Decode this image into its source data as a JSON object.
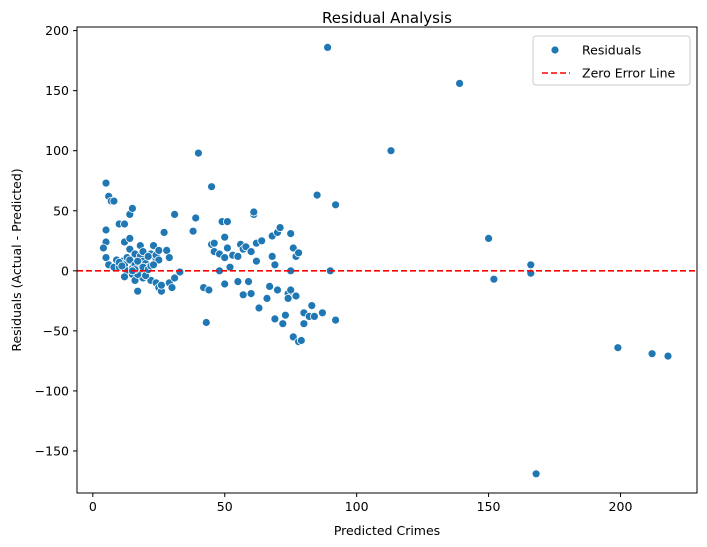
{
  "colors": {
    "point": "#1f77b4",
    "zero_line": "#ff0000"
  },
  "chart_data": {
    "type": "scatter",
    "title": "Residual Analysis",
    "xlabel": "Predicted Crimes",
    "ylabel": "Residuals (Actual - Predicted)",
    "xlim": [
      -6,
      229
    ],
    "ylim": [
      -185,
      203
    ],
    "x_ticks": [
      0,
      50,
      100,
      150,
      200
    ],
    "y_ticks": [
      -150,
      -100,
      -50,
      0,
      50,
      100,
      150,
      200
    ],
    "x_tick_labels": [
      "0",
      "50",
      "100",
      "150",
      "200"
    ],
    "y_tick_labels": [
      "−150",
      "−100",
      "−50",
      "0",
      "50",
      "100",
      "150",
      "200"
    ],
    "legend": {
      "position": "upper right",
      "entries": [
        "Residuals",
        "Zero Error Line"
      ]
    },
    "reference_line": {
      "name": "Zero Error Line",
      "y": 0,
      "style": "dashed"
    },
    "series": [
      {
        "name": "Residuals",
        "points": [
          [
            5,
            73
          ],
          [
            6,
            62
          ],
          [
            7,
            58
          ],
          [
            8,
            58
          ],
          [
            5,
            34
          ],
          [
            5,
            24
          ],
          [
            4,
            19
          ],
          [
            5,
            11
          ],
          [
            6,
            5
          ],
          [
            8,
            3
          ],
          [
            10,
            39
          ],
          [
            12,
            39
          ],
          [
            12,
            24
          ],
          [
            14,
            27
          ],
          [
            14,
            47
          ],
          [
            15,
            52
          ],
          [
            11,
            8
          ],
          [
            12,
            5
          ],
          [
            10,
            3
          ],
          [
            13,
            0
          ],
          [
            12,
            -5
          ],
          [
            15,
            -3
          ],
          [
            16,
            -8
          ],
          [
            17,
            -17
          ],
          [
            14,
            18
          ],
          [
            16,
            14
          ],
          [
            18,
            21
          ],
          [
            18,
            12
          ],
          [
            19,
            8
          ],
          [
            20,
            6
          ],
          [
            21,
            3
          ],
          [
            20,
            -2
          ],
          [
            19,
            -6
          ],
          [
            22,
            -8
          ],
          [
            22,
            14
          ],
          [
            23,
            21
          ],
          [
            24,
            10
          ],
          [
            24,
            13
          ],
          [
            25,
            17
          ],
          [
            25,
            9
          ],
          [
            24,
            -10
          ],
          [
            25,
            -14
          ],
          [
            26,
            -17
          ],
          [
            26,
            -12
          ],
          [
            27,
            32
          ],
          [
            28,
            17
          ],
          [
            29,
            11
          ],
          [
            29,
            -10
          ],
          [
            30,
            -14
          ],
          [
            31,
            47
          ],
          [
            31,
            -6
          ],
          [
            33,
            -1
          ],
          [
            38,
            33
          ],
          [
            39,
            44
          ],
          [
            40,
            98
          ],
          [
            42,
            -14
          ],
          [
            43,
            -43
          ],
          [
            44,
            -16
          ],
          [
            45,
            22
          ],
          [
            45,
            70
          ],
          [
            46,
            23
          ],
          [
            46,
            16
          ],
          [
            48,
            14
          ],
          [
            48,
            0
          ],
          [
            49,
            41
          ],
          [
            50,
            28
          ],
          [
            50,
            11
          ],
          [
            50,
            -11
          ],
          [
            51,
            19
          ],
          [
            51,
            41
          ],
          [
            52,
            3
          ],
          [
            53,
            13
          ],
          [
            55,
            12
          ],
          [
            55,
            -9
          ],
          [
            56,
            22
          ],
          [
            57,
            18
          ],
          [
            57,
            -20
          ],
          [
            58,
            20
          ],
          [
            59,
            -9
          ],
          [
            60,
            16
          ],
          [
            60,
            -19
          ],
          [
            61,
            47
          ],
          [
            61,
            49
          ],
          [
            62,
            23
          ],
          [
            62,
            8
          ],
          [
            63,
            -31
          ],
          [
            64,
            25
          ],
          [
            66,
            -23
          ],
          [
            67,
            -13
          ],
          [
            68,
            29
          ],
          [
            68,
            12
          ],
          [
            69,
            -40
          ],
          [
            69,
            5
          ],
          [
            70,
            32
          ],
          [
            70,
            -16
          ],
          [
            71,
            36
          ],
          [
            72,
            -44
          ],
          [
            73,
            -37
          ],
          [
            74,
            -19
          ],
          [
            74,
            -23
          ],
          [
            75,
            31
          ],
          [
            75,
            -16
          ],
          [
            75,
            0
          ],
          [
            76,
            19
          ],
          [
            76,
            -55
          ],
          [
            77,
            12
          ],
          [
            77,
            -21
          ],
          [
            78,
            15
          ],
          [
            78,
            -59
          ],
          [
            79,
            -58
          ],
          [
            80,
            -35
          ],
          [
            80,
            -44
          ],
          [
            82,
            -38
          ],
          [
            83,
            -29
          ],
          [
            84,
            -38
          ],
          [
            85,
            63
          ],
          [
            87,
            -35
          ],
          [
            89,
            186
          ],
          [
            90,
            0
          ],
          [
            92,
            55
          ],
          [
            92,
            -41
          ],
          [
            113,
            100
          ],
          [
            139,
            156
          ],
          [
            150,
            27
          ],
          [
            152,
            -7
          ],
          [
            166,
            5
          ],
          [
            166,
            -2
          ],
          [
            168,
            -169
          ],
          [
            199,
            -64
          ],
          [
            212,
            -69
          ],
          [
            218,
            -71
          ],
          [
            9,
            9
          ],
          [
            10,
            7
          ],
          [
            11,
            4
          ],
          [
            13,
            11
          ],
          [
            14,
            9
          ],
          [
            15,
            2
          ],
          [
            16,
            5
          ],
          [
            17,
            8
          ],
          [
            18,
            1
          ],
          [
            19,
            3
          ],
          [
            20,
            -4
          ],
          [
            21,
            1
          ],
          [
            22,
            4
          ],
          [
            23,
            5
          ],
          [
            17,
            -3
          ],
          [
            16,
            1
          ],
          [
            15,
            0
          ],
          [
            19,
            16
          ],
          [
            21,
            12
          ]
        ]
      }
    ]
  }
}
